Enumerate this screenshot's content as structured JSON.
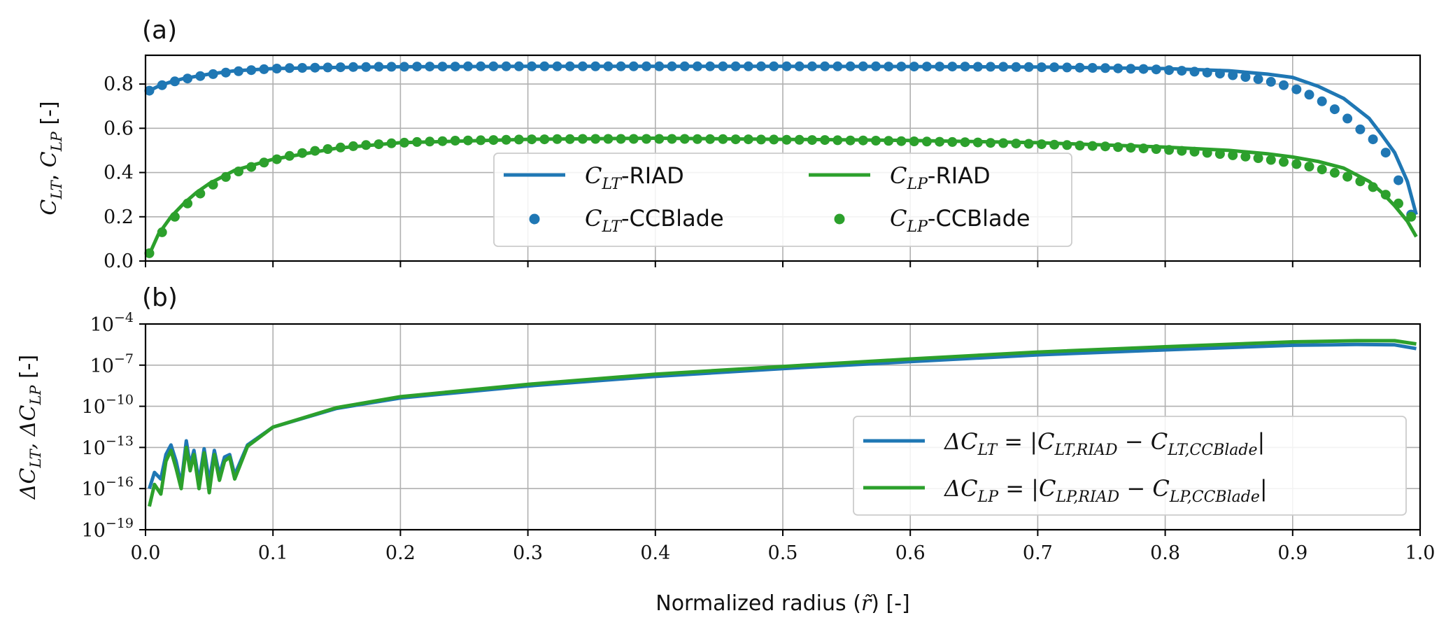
{
  "figure": {
    "xlabel": "Normalized radius (r̃) [-]",
    "xlabel_parts": [
      "Normalized radius (",
      "r̃",
      ") [-]"
    ]
  },
  "chart_data": [
    {
      "panel": "(a)",
      "type": "line",
      "ylabel": "C_LT, C_LP [-]",
      "ylabel_parts": [
        "C",
        "LT",
        ", ",
        "C",
        "LP",
        " [-]"
      ],
      "xlim": [
        0,
        1
      ],
      "ylim": [
        0,
        0.93
      ],
      "x_ticks": [
        "0.0",
        "0.1",
        "0.2",
        "0.3",
        "0.4",
        "0.5",
        "0.6",
        "0.7",
        "0.8",
        "0.9",
        "1.0"
      ],
      "y_ticks": [
        "0.0",
        "0.2",
        "0.4",
        "0.6",
        "0.8"
      ],
      "x_tick_labels_shown": false,
      "grid": true,
      "legend_placement": "lower center",
      "series": [
        {
          "name": "C_LT-RIAD",
          "name_parts": [
            "C",
            "LT",
            "-RIAD"
          ],
          "style": "line",
          "color": "#1f77b4",
          "x": [
            0.003,
            0.01,
            0.02,
            0.03,
            0.05,
            0.07,
            0.1,
            0.15,
            0.2,
            0.3,
            0.4,
            0.5,
            0.6,
            0.7,
            0.8,
            0.85,
            0.88,
            0.9,
            0.92,
            0.94,
            0.96,
            0.97,
            0.98,
            0.99,
            0.997
          ],
          "y": [
            0.77,
            0.79,
            0.81,
            0.825,
            0.845,
            0.86,
            0.87,
            0.875,
            0.878,
            0.88,
            0.88,
            0.88,
            0.879,
            0.877,
            0.87,
            0.86,
            0.845,
            0.83,
            0.79,
            0.735,
            0.645,
            0.57,
            0.49,
            0.36,
            0.21
          ]
        },
        {
          "name": "C_LT-CCBlade",
          "name_parts": [
            "C",
            "LT",
            "-CCBlade"
          ],
          "style": "markers",
          "color": "#1f77b4",
          "x": [
            0.003,
            0.013,
            0.023,
            0.033,
            0.043,
            0.053,
            0.063,
            0.073,
            0.083,
            0.093,
            0.103,
            0.113,
            0.123,
            0.133,
            0.143,
            0.153,
            0.163,
            0.173,
            0.183,
            0.193,
            0.203,
            0.213,
            0.223,
            0.233,
            0.243,
            0.253,
            0.263,
            0.273,
            0.283,
            0.293,
            0.303,
            0.313,
            0.323,
            0.333,
            0.343,
            0.353,
            0.363,
            0.373,
            0.383,
            0.393,
            0.403,
            0.413,
            0.423,
            0.433,
            0.443,
            0.453,
            0.463,
            0.473,
            0.483,
            0.493,
            0.503,
            0.513,
            0.523,
            0.533,
            0.543,
            0.553,
            0.563,
            0.573,
            0.583,
            0.593,
            0.603,
            0.613,
            0.623,
            0.633,
            0.643,
            0.653,
            0.663,
            0.673,
            0.683,
            0.693,
            0.703,
            0.713,
            0.723,
            0.733,
            0.743,
            0.753,
            0.763,
            0.773,
            0.783,
            0.793,
            0.803,
            0.813,
            0.823,
            0.833,
            0.843,
            0.853,
            0.863,
            0.873,
            0.883,
            0.893,
            0.903,
            0.913,
            0.923,
            0.933,
            0.943,
            0.953,
            0.963,
            0.973,
            0.983,
            0.993
          ],
          "y": [
            0.77,
            0.795,
            0.812,
            0.825,
            0.836,
            0.845,
            0.852,
            0.858,
            0.863,
            0.867,
            0.87,
            0.872,
            0.873,
            0.874,
            0.875,
            0.876,
            0.877,
            0.877,
            0.878,
            0.878,
            0.878,
            0.879,
            0.879,
            0.879,
            0.879,
            0.88,
            0.88,
            0.88,
            0.88,
            0.88,
            0.88,
            0.88,
            0.88,
            0.88,
            0.88,
            0.88,
            0.88,
            0.88,
            0.88,
            0.88,
            0.88,
            0.88,
            0.88,
            0.88,
            0.88,
            0.88,
            0.88,
            0.88,
            0.88,
            0.88,
            0.88,
            0.88,
            0.88,
            0.88,
            0.88,
            0.88,
            0.88,
            0.88,
            0.879,
            0.879,
            0.879,
            0.879,
            0.879,
            0.879,
            0.879,
            0.878,
            0.878,
            0.878,
            0.877,
            0.877,
            0.876,
            0.876,
            0.875,
            0.874,
            0.873,
            0.872,
            0.871,
            0.869,
            0.868,
            0.866,
            0.863,
            0.86,
            0.856,
            0.852,
            0.847,
            0.84,
            0.832,
            0.822,
            0.81,
            0.795,
            0.776,
            0.752,
            0.722,
            0.686,
            0.644,
            0.595,
            0.55,
            0.49,
            0.365,
            0.21
          ]
        },
        {
          "name": "C_LP-RIAD",
          "name_parts": [
            "C",
            "LP",
            "-RIAD"
          ],
          "style": "line",
          "color": "#2ca02c",
          "x": [
            0.003,
            0.01,
            0.02,
            0.03,
            0.04,
            0.05,
            0.07,
            0.1,
            0.15,
            0.2,
            0.3,
            0.4,
            0.5,
            0.6,
            0.7,
            0.8,
            0.85,
            0.88,
            0.9,
            0.92,
            0.94,
            0.96,
            0.97,
            0.98,
            0.99,
            0.997
          ],
          "y": [
            0.03,
            0.12,
            0.2,
            0.26,
            0.31,
            0.35,
            0.41,
            0.46,
            0.51,
            0.535,
            0.55,
            0.555,
            0.55,
            0.545,
            0.535,
            0.515,
            0.5,
            0.485,
            0.47,
            0.45,
            0.42,
            0.36,
            0.31,
            0.25,
            0.18,
            0.11
          ]
        },
        {
          "name": "C_LP-CCBlade",
          "name_parts": [
            "C",
            "LP",
            "-CCBlade"
          ],
          "style": "markers",
          "color": "#2ca02c",
          "x": [
            0.003,
            0.013,
            0.023,
            0.033,
            0.043,
            0.053,
            0.063,
            0.073,
            0.083,
            0.093,
            0.103,
            0.113,
            0.123,
            0.133,
            0.143,
            0.153,
            0.163,
            0.173,
            0.183,
            0.193,
            0.203,
            0.213,
            0.223,
            0.233,
            0.243,
            0.253,
            0.263,
            0.273,
            0.283,
            0.293,
            0.303,
            0.313,
            0.323,
            0.333,
            0.343,
            0.353,
            0.363,
            0.373,
            0.383,
            0.393,
            0.403,
            0.413,
            0.423,
            0.433,
            0.443,
            0.453,
            0.463,
            0.473,
            0.483,
            0.493,
            0.503,
            0.513,
            0.523,
            0.533,
            0.543,
            0.553,
            0.563,
            0.573,
            0.583,
            0.593,
            0.603,
            0.613,
            0.623,
            0.633,
            0.643,
            0.653,
            0.663,
            0.673,
            0.683,
            0.693,
            0.703,
            0.713,
            0.723,
            0.733,
            0.743,
            0.753,
            0.763,
            0.773,
            0.783,
            0.793,
            0.803,
            0.813,
            0.823,
            0.833,
            0.843,
            0.853,
            0.863,
            0.873,
            0.883,
            0.893,
            0.903,
            0.913,
            0.923,
            0.933,
            0.943,
            0.953,
            0.963,
            0.973,
            0.983,
            0.993
          ],
          "y": [
            0.035,
            0.13,
            0.2,
            0.26,
            0.305,
            0.345,
            0.38,
            0.405,
            0.425,
            0.445,
            0.46,
            0.475,
            0.488,
            0.498,
            0.506,
            0.513,
            0.519,
            0.524,
            0.528,
            0.532,
            0.535,
            0.538,
            0.54,
            0.542,
            0.544,
            0.545,
            0.546,
            0.547,
            0.548,
            0.549,
            0.55,
            0.55,
            0.551,
            0.551,
            0.552,
            0.552,
            0.552,
            0.552,
            0.552,
            0.552,
            0.552,
            0.552,
            0.552,
            0.551,
            0.551,
            0.551,
            0.55,
            0.55,
            0.549,
            0.549,
            0.548,
            0.548,
            0.547,
            0.547,
            0.546,
            0.545,
            0.545,
            0.544,
            0.543,
            0.542,
            0.541,
            0.54,
            0.539,
            0.538,
            0.537,
            0.536,
            0.534,
            0.533,
            0.531,
            0.53,
            0.528,
            0.526,
            0.524,
            0.522,
            0.52,
            0.518,
            0.515,
            0.512,
            0.509,
            0.506,
            0.502,
            0.498,
            0.494,
            0.489,
            0.484,
            0.478,
            0.472,
            0.465,
            0.457,
            0.448,
            0.438,
            0.427,
            0.414,
            0.399,
            0.381,
            0.36,
            0.334,
            0.3,
            0.26,
            0.2
          ]
        }
      ]
    },
    {
      "panel": "(b)",
      "type": "line",
      "y_scale": "log",
      "ylabel": "ΔC_LT, ΔC_LP [-]",
      "ylabel_parts": [
        "ΔC",
        "LT",
        ", ΔC",
        "LP",
        " [-]"
      ],
      "xlim": [
        0,
        1
      ],
      "ylim": [
        1e-19,
        0.0001
      ],
      "x_ticks": [
        "0.0",
        "0.1",
        "0.2",
        "0.3",
        "0.4",
        "0.5",
        "0.6",
        "0.7",
        "0.8",
        "0.9",
        "1.0"
      ],
      "y_ticks": [
        {
          "base": "10",
          "exp": "−4"
        },
        {
          "base": "10",
          "exp": "−7"
        },
        {
          "base": "10",
          "exp": "−10"
        },
        {
          "base": "10",
          "exp": "−13"
        },
        {
          "base": "10",
          "exp": "−16"
        },
        {
          "base": "10",
          "exp": "−19"
        }
      ],
      "grid": true,
      "legend_placement": "lower right",
      "series": [
        {
          "name": "ΔC_LT = |C_LT,RIAD − C_LT,CCBlade|",
          "name_parts": [
            "ΔC",
            "LT",
            " = |C",
            "LT,RIAD",
            " − C",
            "LT,CCBlade",
            "|"
          ],
          "style": "line",
          "color": "#1f77b4",
          "x": [
            0.003,
            0.007,
            0.012,
            0.016,
            0.02,
            0.024,
            0.028,
            0.032,
            0.035,
            0.038,
            0.042,
            0.046,
            0.05,
            0.054,
            0.058,
            0.062,
            0.066,
            0.07,
            0.08,
            0.1,
            0.15,
            0.2,
            0.3,
            0.4,
            0.5,
            0.6,
            0.7,
            0.8,
            0.9,
            0.95,
            0.98,
            0.997
          ],
          "y": [
            1e-16,
            1.5e-15,
            5e-16,
            3e-14,
            1.5e-13,
            1e-14,
            2e-16,
            3e-13,
            5e-15,
            6e-14,
            3e-16,
            8e-14,
            3e-16,
            6e-14,
            1e-15,
            2e-14,
            3e-14,
            1e-15,
            1.5e-13,
            3e-12,
            7e-11,
            4e-10,
            3e-09,
            1.5e-08,
            5.6e-08,
            1.8e-07,
            5.6e-07,
            1.3e-06,
            2.8e-06,
            3.2e-06,
            3e-06,
            1.6e-06
          ]
        },
        {
          "name": "ΔC_LP = |C_LP,RIAD − C_LP,CCBlade|",
          "name_parts": [
            "ΔC",
            "LP",
            " = |C",
            "LP,RIAD",
            " − C",
            "LP,CCBlade",
            "|"
          ],
          "style": "line",
          "color": "#2ca02c",
          "x": [
            0.003,
            0.007,
            0.012,
            0.016,
            0.02,
            0.024,
            0.028,
            0.032,
            0.035,
            0.038,
            0.042,
            0.046,
            0.05,
            0.054,
            0.058,
            0.062,
            0.066,
            0.07,
            0.08,
            0.1,
            0.15,
            0.2,
            0.3,
            0.4,
            0.5,
            0.6,
            0.7,
            0.8,
            0.9,
            0.95,
            0.98,
            0.997
          ],
          "y": [
            5e-18,
            2e-16,
            4e-17,
            1e-14,
            6e-14,
            3e-15,
            1e-16,
            1e-13,
            2e-15,
            3e-14,
            1e-16,
            4e-14,
            5e-17,
            3e-14,
            4e-16,
            1e-14,
            2e-14,
            5e-16,
            1.2e-13,
            3e-12,
            8e-11,
            5e-10,
            4e-09,
            2.2e-08,
            8e-08,
            2.8e-07,
            9e-07,
            2.2e-06,
            5e-06,
            6e-06,
            6e-06,
            3.5e-06
          ]
        }
      ]
    }
  ]
}
